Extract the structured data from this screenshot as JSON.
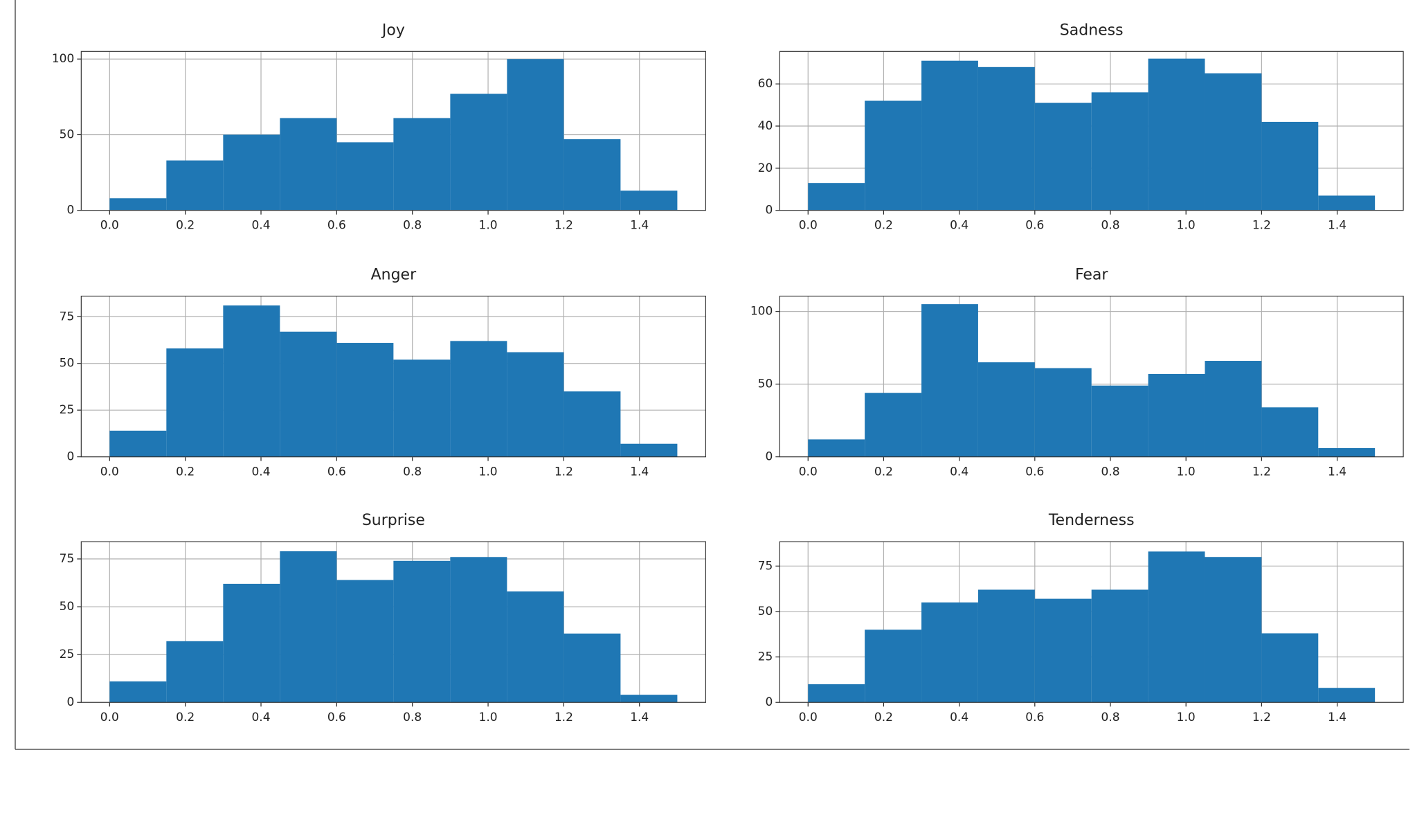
{
  "chart_data": [
    {
      "type": "histogram",
      "title": "Joy",
      "bins": [
        0,
        0.15,
        0.3,
        0.45,
        0.6,
        0.75,
        0.9,
        1.05,
        1.2,
        1.35,
        1.5
      ],
      "values": [
        8,
        33,
        50,
        61,
        45,
        61,
        77,
        100,
        47,
        13
      ],
      "color": "#1f77b4",
      "xlim": [
        -0.075,
        1.575
      ],
      "ylim": [
        0,
        105
      ],
      "xticks": [
        {
          "value": 0,
          "label": "0.0"
        },
        0.2,
        0.4,
        0.6,
        0.8,
        {
          "value": 1,
          "label": "1.0"
        },
        1.2,
        1.4
      ],
      "yticks": [
        0,
        50,
        100
      ],
      "grid": true
    },
    {
      "type": "histogram",
      "title": "Sadness",
      "bins": [
        0,
        0.15,
        0.3,
        0.45,
        0.6,
        0.75,
        0.9,
        1.05,
        1.2,
        1.35,
        1.5
      ],
      "values": [
        13,
        52,
        71,
        68,
        51,
        56,
        72,
        65,
        42,
        7
      ],
      "color": "#1f77b4",
      "xlim": [
        -0.075,
        1.575
      ],
      "ylim": [
        0,
        75.4
      ],
      "xticks": [
        {
          "value": 0,
          "label": "0.0"
        },
        0.2,
        0.4,
        0.6,
        0.8,
        {
          "value": 1,
          "label": "1.0"
        },
        1.2,
        1.4
      ],
      "yticks": [
        0,
        20,
        40,
        60
      ],
      "grid": true
    },
    {
      "type": "histogram",
      "title": "Anger",
      "bins": [
        0,
        0.15,
        0.3,
        0.45,
        0.6,
        0.75,
        0.9,
        1.05,
        1.2,
        1.35,
        1.5
      ],
      "values": [
        14,
        58,
        81,
        67,
        61,
        52,
        62,
        56,
        35,
        7
      ],
      "color": "#1f77b4",
      "xlim": [
        -0.075,
        1.575
      ],
      "ylim": [
        0,
        86
      ],
      "xticks": [
        {
          "value": 0,
          "label": "0.0"
        },
        0.2,
        0.4,
        0.6,
        0.8,
        {
          "value": 1,
          "label": "1.0"
        },
        1.2,
        1.4
      ],
      "yticks": [
        0,
        25,
        50,
        75
      ],
      "grid": true
    },
    {
      "type": "histogram",
      "title": "Fear",
      "bins": [
        0,
        0.15,
        0.3,
        0.45,
        0.6,
        0.75,
        0.9,
        1.05,
        1.2,
        1.35,
        1.5
      ],
      "values": [
        12,
        44,
        105,
        65,
        61,
        49,
        57,
        66,
        34,
        6
      ],
      "color": "#1f77b4",
      "xlim": [
        -0.075,
        1.575
      ],
      "ylim": [
        0,
        110.5
      ],
      "xticks": [
        {
          "value": 0,
          "label": "0.0"
        },
        0.2,
        0.4,
        0.6,
        0.8,
        {
          "value": 1,
          "label": "1.0"
        },
        1.2,
        1.4
      ],
      "yticks": [
        0,
        50,
        100
      ],
      "grid": true
    },
    {
      "type": "histogram",
      "title": "Surprise",
      "bins": [
        0,
        0.15,
        0.3,
        0.45,
        0.6,
        0.75,
        0.9,
        1.05,
        1.2,
        1.35,
        1.5
      ],
      "values": [
        11,
        32,
        62,
        79,
        64,
        74,
        76,
        58,
        36,
        4
      ],
      "color": "#1f77b4",
      "xlim": [
        -0.075,
        1.575
      ],
      "ylim": [
        0,
        84
      ],
      "xticks": [
        {
          "value": 0,
          "label": "0.0"
        },
        0.2,
        0.4,
        0.6,
        0.8,
        {
          "value": 1,
          "label": "1.0"
        },
        1.2,
        1.4
      ],
      "yticks": [
        0,
        25,
        50,
        75
      ],
      "grid": true
    },
    {
      "type": "histogram",
      "title": "Tenderness",
      "bins": [
        0,
        0.15,
        0.3,
        0.45,
        0.6,
        0.75,
        0.9,
        1.05,
        1.2,
        1.35,
        1.5
      ],
      "values": [
        10,
        40,
        55,
        62,
        57,
        62,
        83,
        80,
        38,
        8
      ],
      "color": "#1f77b4",
      "xlim": [
        -0.075,
        1.575
      ],
      "ylim": [
        0,
        88.4
      ],
      "xticks": [
        {
          "value": 0,
          "label": "0.0"
        },
        0.2,
        0.4,
        0.6,
        0.8,
        {
          "value": 1,
          "label": "1.0"
        },
        1.2,
        1.4
      ],
      "yticks": [
        0,
        25,
        50,
        75
      ],
      "grid": true
    }
  ]
}
